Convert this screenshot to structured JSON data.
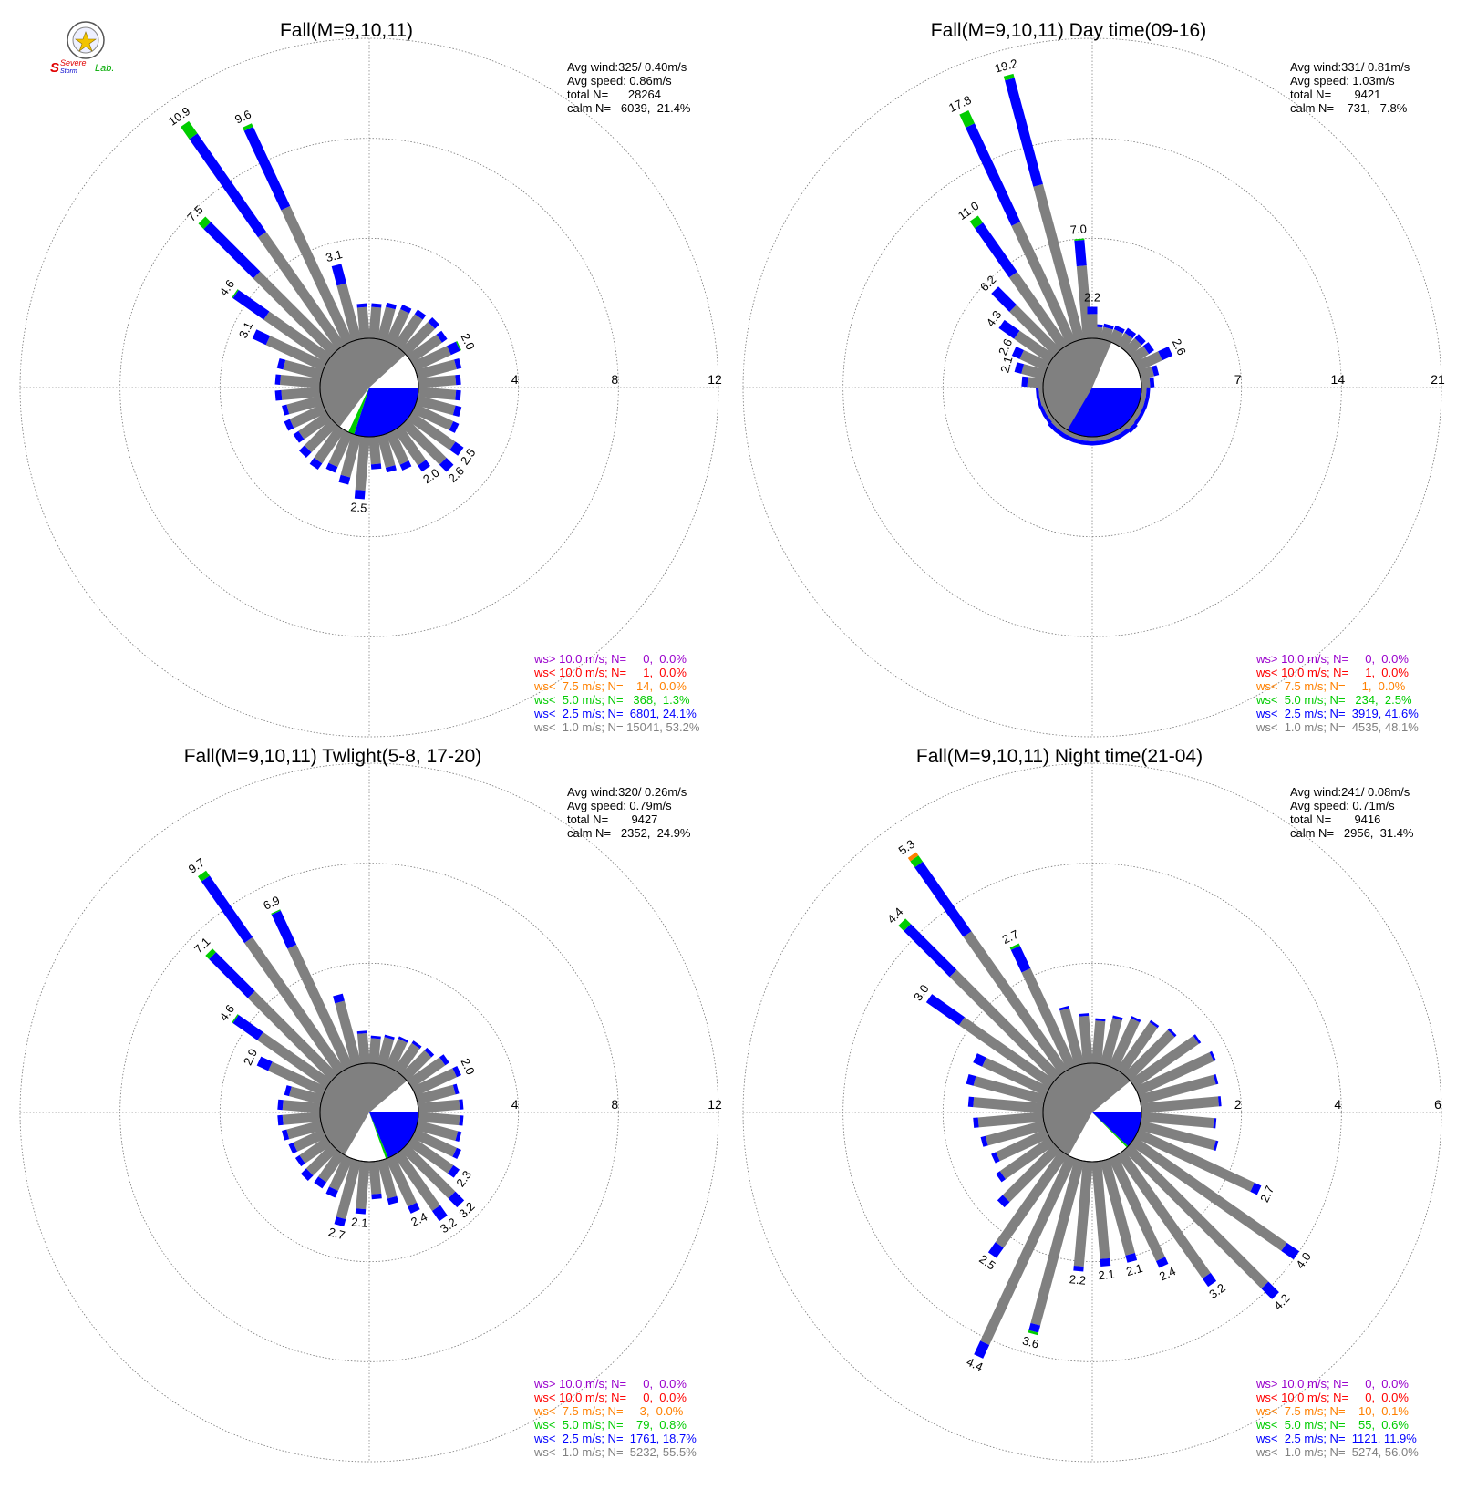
{
  "logo": {
    "line1": "Severe",
    "line2": "Storm",
    "line3": "Lab."
  },
  "category_colors": {
    "calm": "#808080",
    "lt1": "#808080",
    "lt2_5": "#0000ff",
    "lt5": "#00cc00",
    "lt7_5": "#ff8000",
    "lt10": "#ff0000",
    "gt10": "#9900cc"
  },
  "chart_data": [
    {
      "type": "windrose",
      "title": "Fall(M=9,10,11)",
      "info": [
        "Avg wind:325/ 0.40m/s",
        "Avg speed: 0.86m/s",
        "total N=      28264",
        "calm N=   6039,  21.4%"
      ],
      "rings": [
        4,
        8,
        12
      ],
      "calm_pct": 21.4,
      "calm_fractions": {
        "grey": 0.53,
        "blue": 0.3,
        "green": 0.02
      },
      "legend": [
        {
          "text": "ws> 10.0 m/s; N=     0,  0.0%",
          "color": "#9900cc"
        },
        {
          "text": "ws< 10.0 m/s; N=     1,  0.0%",
          "color": "#ff0000"
        },
        {
          "text": "ws<  7.5 m/s; N=    14,  0.0%",
          "color": "#ff8000"
        },
        {
          "text": "ws<  5.0 m/s; N=   368,  1.3%",
          "color": "#00cc00"
        },
        {
          "text": "ws<  2.5 m/s; N=  6801, 24.1%",
          "color": "#0000ff"
        },
        {
          "text": "ws<  1.0 m/s; N= 15041, 53.2%",
          "color": "#808080"
        }
      ],
      "bars": [
        {
          "dir": 5,
          "total": 1.4,
          "blue": 0.15
        },
        {
          "dir": 15,
          "total": 1.5,
          "blue": 0.18
        },
        {
          "dir": 25,
          "total": 1.6,
          "blue": 0.2
        },
        {
          "dir": 35,
          "total": 1.7,
          "blue": 0.22
        },
        {
          "dir": 45,
          "total": 1.8,
          "blue": 0.25
        },
        {
          "dir": 55,
          "total": 1.7,
          "blue": 0.25
        },
        {
          "dir": 65,
          "total": 2.0,
          "blue": 0.4,
          "green": 0.05,
          "label": "2.0"
        },
        {
          "dir": 75,
          "total": 1.8,
          "blue": 0.2
        },
        {
          "dir": 85,
          "total": 1.7,
          "blue": 0.2
        },
        {
          "dir": 95,
          "total": 1.7,
          "blue": 0.2
        },
        {
          "dir": 105,
          "total": 1.8,
          "blue": 0.25
        },
        {
          "dir": 115,
          "total": 1.9,
          "blue": 0.25
        },
        {
          "dir": 125,
          "total": 2.5,
          "blue": 0.4,
          "label": "2.5"
        },
        {
          "dir": 135,
          "total": 2.6,
          "blue": 0.4,
          "label": "2.6"
        },
        {
          "dir": 145,
          "total": 2.0,
          "blue": 0.3,
          "label": "2.0"
        },
        {
          "dir": 155,
          "total": 1.6,
          "blue": 0.25
        },
        {
          "dir": 165,
          "total": 1.5,
          "blue": 0.2
        },
        {
          "dir": 175,
          "total": 1.3,
          "blue": 0.2
        },
        {
          "dir": 185,
          "total": 2.5,
          "blue": 0.35,
          "label": "2.5"
        },
        {
          "dir": 195,
          "total": 2.0,
          "blue": 0.3
        },
        {
          "dir": 205,
          "total": 1.7,
          "blue": 0.25
        },
        {
          "dir": 215,
          "total": 1.9,
          "blue": 0.3
        },
        {
          "dir": 225,
          "total": 1.8,
          "blue": 0.3
        },
        {
          "dir": 235,
          "total": 1.6,
          "blue": 0.25
        },
        {
          "dir": 245,
          "total": 1.7,
          "blue": 0.25
        },
        {
          "dir": 255,
          "total": 1.6,
          "blue": 0.2
        },
        {
          "dir": 265,
          "total": 1.8,
          "blue": 0.25
        },
        {
          "dir": 275,
          "total": 1.8,
          "blue": 0.2
        },
        {
          "dir": 285,
          "total": 1.8,
          "blue": 0.25
        },
        {
          "dir": 295,
          "total": 3.1,
          "blue": 0.6,
          "label": "3.1"
        },
        {
          "dir": 305,
          "total": 4.6,
          "blue": 1.5,
          "green": 0.05,
          "label": "4.6"
        },
        {
          "dir": 315,
          "total": 7.5,
          "blue": 2.8,
          "green": 0.3,
          "label": "7.5"
        },
        {
          "dir": 325,
          "total": 10.9,
          "blue": 4.8,
          "green": 0.6,
          "label": "10.9"
        },
        {
          "dir": 335,
          "total": 9.6,
          "blue": 3.5,
          "green": 0.15,
          "label": "9.6"
        },
        {
          "dir": 345,
          "total": 3.1,
          "blue": 0.8,
          "label": "3.1"
        },
        {
          "dir": 355,
          "total": 1.4,
          "blue": 0.15
        }
      ]
    },
    {
      "type": "windrose",
      "title": "Fall(M=9,10,11) Day time(09-16)",
      "info": [
        "Avg wind:331/ 0.81m/s",
        "Avg speed: 1.03m/s",
        "total N=       9421",
        "calm N=    731,   7.8%"
      ],
      "rings": [
        7,
        14,
        21
      ],
      "calm_pct": 7.8,
      "calm_fractions": {
        "grey": 0.48,
        "blue": 0.42,
        "green": 0.03
      },
      "legend": [
        {
          "text": "ws> 10.0 m/s; N=     0,  0.0%",
          "color": "#9900cc"
        },
        {
          "text": "ws< 10.0 m/s; N=     1,  0.0%",
          "color": "#ff0000"
        },
        {
          "text": "ws<  7.5 m/s; N=     1,  0.0%",
          "color": "#ff8000"
        },
        {
          "text": "ws<  5.0 m/s; N=   234,  2.5%",
          "color": "#00cc00"
        },
        {
          "text": "ws<  2.5 m/s; N=  3919, 41.6%",
          "color": "#0000ff"
        },
        {
          "text": "ws<  1.0 m/s; N=  4535, 48.1%",
          "color": "#808080"
        }
      ],
      "bars": [
        {
          "dir": 5,
          "total": 1.0,
          "blue": 0.2
        },
        {
          "dir": 15,
          "total": 1.1,
          "blue": 0.25
        },
        {
          "dir": 25,
          "total": 1.2,
          "blue": 0.3
        },
        {
          "dir": 35,
          "total": 1.4,
          "blue": 0.4
        },
        {
          "dir": 45,
          "total": 1.5,
          "blue": 0.4
        },
        {
          "dir": 55,
          "total": 1.6,
          "blue": 0.45
        },
        {
          "dir": 65,
          "total": 2.6,
          "blue": 0.8,
          "label": "2.6"
        },
        {
          "dir": 75,
          "total": 1.3,
          "blue": 0.35
        },
        {
          "dir": 85,
          "total": 0.9,
          "blue": 0.3
        },
        {
          "dir": 95,
          "total": 0.6,
          "blue": 0.25
        },
        {
          "dir": 105,
          "total": 0.6,
          "blue": 0.25
        },
        {
          "dir": 115,
          "total": 0.6,
          "blue": 0.25
        },
        {
          "dir": 125,
          "total": 0.6,
          "blue": 0.25
        },
        {
          "dir": 135,
          "total": 0.7,
          "blue": 0.3
        },
        {
          "dir": 145,
          "total": 0.6,
          "blue": 0.3
        },
        {
          "dir": 155,
          "total": 0.6,
          "blue": 0.3
        },
        {
          "dir": 165,
          "total": 0.6,
          "blue": 0.3
        },
        {
          "dir": 175,
          "total": 0.6,
          "blue": 0.3
        },
        {
          "dir": 185,
          "total": 0.6,
          "blue": 0.3
        },
        {
          "dir": 195,
          "total": 0.6,
          "blue": 0.3
        },
        {
          "dir": 205,
          "total": 0.6,
          "blue": 0.3
        },
        {
          "dir": 215,
          "total": 0.6,
          "blue": 0.3
        },
        {
          "dir": 225,
          "total": 0.6,
          "blue": 0.3
        },
        {
          "dir": 235,
          "total": 0.5,
          "blue": 0.25
        },
        {
          "dir": 245,
          "total": 0.5,
          "blue": 0.25
        },
        {
          "dir": 255,
          "total": 0.5,
          "blue": 0.2
        },
        {
          "dir": 265,
          "total": 0.5,
          "blue": 0.2
        },
        {
          "dir": 275,
          "total": 1.5,
          "blue": 0.4
        },
        {
          "dir": 285,
          "total": 2.1,
          "blue": 0.5,
          "label": "2.1"
        },
        {
          "dir": 295,
          "total": 2.6,
          "blue": 0.6,
          "label": "2.6"
        },
        {
          "dir": 305,
          "total": 4.3,
          "blue": 1.3,
          "label": "4.3"
        },
        {
          "dir": 315,
          "total": 6.2,
          "blue": 1.8,
          "label": "6.2"
        },
        {
          "dir": 325,
          "total": 11.0,
          "blue": 4.2,
          "green": 0.6,
          "label": "11.0"
        },
        {
          "dir": 335,
          "total": 17.8,
          "blue": 7.6,
          "green": 1.0,
          "label": "17.8"
        },
        {
          "dir": 345,
          "total": 19.2,
          "blue": 7.7,
          "green": 0.3,
          "label": "19.2"
        },
        {
          "dir": 355,
          "total": 7.0,
          "blue": 1.8,
          "green": 0.1,
          "label": "7.0"
        },
        {
          "dir": 0,
          "total": 2.2,
          "blue": 0.5,
          "label": "2.2"
        }
      ]
    },
    {
      "type": "windrose",
      "title": "Fall(M=9,10,11) Twlight(5-8, 17-20)",
      "info": [
        "Avg wind:320/ 0.26m/s",
        "Avg speed: 0.79m/s",
        "total N=       9427",
        "calm N=   2352,  24.9%"
      ],
      "rings": [
        4,
        8,
        12
      ],
      "calm_pct": 24.9,
      "calm_fractions": {
        "grey": 0.555,
        "blue": 0.187,
        "green": 0.008
      },
      "legend": [
        {
          "text": "ws> 10.0 m/s; N=     0,  0.0%",
          "color": "#9900cc"
        },
        {
          "text": "ws< 10.0 m/s; N=     0,  0.0%",
          "color": "#ff0000"
        },
        {
          "text": "ws<  7.5 m/s; N=     3,  0.0%",
          "color": "#ff8000"
        },
        {
          "text": "ws<  5.0 m/s; N=    79,  0.8%",
          "color": "#00cc00"
        },
        {
          "text": "ws<  2.5 m/s; N=  1761, 18.7%",
          "color": "#0000ff"
        },
        {
          "text": "ws<  1.0 m/s; N=  5232, 55.5%",
          "color": "#808080"
        }
      ],
      "bars": [
        {
          "dir": 5,
          "total": 1.1,
          "blue": 0.1
        },
        {
          "dir": 15,
          "total": 1.2,
          "blue": 0.1
        },
        {
          "dir": 25,
          "total": 1.3,
          "blue": 0.1
        },
        {
          "dir": 35,
          "total": 1.4,
          "blue": 0.12
        },
        {
          "dir": 45,
          "total": 1.5,
          "blue": 0.15
        },
        {
          "dir": 55,
          "total": 1.8,
          "blue": 0.2
        },
        {
          "dir": 65,
          "total": 2.0,
          "blue": 0.2,
          "label": "2.0"
        },
        {
          "dir": 75,
          "total": 1.7,
          "blue": 0.15
        },
        {
          "dir": 85,
          "total": 1.8,
          "blue": 0.15
        },
        {
          "dir": 95,
          "total": 1.8,
          "blue": 0.15
        },
        {
          "dir": 105,
          "total": 1.8,
          "blue": 0.15
        },
        {
          "dir": 115,
          "total": 2.0,
          "blue": 0.2
        },
        {
          "dir": 125,
          "total": 2.3,
          "blue": 0.3,
          "label": "2.3"
        },
        {
          "dir": 135,
          "total": 3.2,
          "blue": 0.5,
          "label": "3.2"
        },
        {
          "dir": 145,
          "total": 3.2,
          "blue": 0.5,
          "label": "3.2"
        },
        {
          "dir": 155,
          "total": 2.4,
          "blue": 0.3,
          "label": "2.4"
        },
        {
          "dir": 165,
          "total": 1.8,
          "blue": 0.25
        },
        {
          "dir": 175,
          "total": 1.5,
          "blue": 0.2
        },
        {
          "dir": 185,
          "total": 2.1,
          "blue": 0.2,
          "label": "2.1"
        },
        {
          "dir": 195,
          "total": 2.7,
          "blue": 0.3,
          "label": "2.7"
        },
        {
          "dir": 205,
          "total": 1.7,
          "blue": 0.3
        },
        {
          "dir": 215,
          "total": 1.6,
          "blue": 0.3
        },
        {
          "dir": 225,
          "total": 1.7,
          "blue": 0.3
        },
        {
          "dir": 235,
          "total": 1.5,
          "blue": 0.2
        },
        {
          "dir": 245,
          "total": 1.5,
          "blue": 0.2
        },
        {
          "dir": 255,
          "total": 1.6,
          "blue": 0.2
        },
        {
          "dir": 265,
          "total": 1.7,
          "blue": 0.2
        },
        {
          "dir": 275,
          "total": 1.7,
          "blue": 0.2
        },
        {
          "dir": 285,
          "total": 1.5,
          "blue": 0.2
        },
        {
          "dir": 295,
          "total": 2.9,
          "blue": 0.5,
          "label": "2.9"
        },
        {
          "dir": 305,
          "total": 4.6,
          "blue": 1.2,
          "green": 0.05,
          "label": "4.6"
        },
        {
          "dir": 315,
          "total": 7.1,
          "blue": 2.2,
          "green": 0.2,
          "label": "7.1"
        },
        {
          "dir": 325,
          "total": 9.7,
          "blue": 3.0,
          "green": 0.25,
          "label": "9.7"
        },
        {
          "dir": 335,
          "total": 6.9,
          "blue": 1.5,
          "green": 0.05,
          "label": "6.9"
        },
        {
          "dir": 345,
          "total": 2.9,
          "blue": 0.3
        },
        {
          "dir": 355,
          "total": 1.3,
          "blue": 0.1
        }
      ]
    },
    {
      "type": "windrose",
      "title": "Fall(M=9,10,11) Night time(21-04)",
      "info": [
        "Avg wind:241/ 0.08m/s",
        "Avg speed: 0.71m/s",
        "total N=       9416",
        "calm N=   2956,  31.4%"
      ],
      "rings": [
        2,
        4,
        6
      ],
      "calm_pct": 31.4,
      "calm_fractions": {
        "grey": 0.56,
        "blue": 0.12,
        "green": 0.006
      },
      "legend": [
        {
          "text": "ws> 10.0 m/s; N=     0,  0.0%",
          "color": "#9900cc"
        },
        {
          "text": "ws< 10.0 m/s; N=     0,  0.0%",
          "color": "#ff0000"
        },
        {
          "text": "ws<  7.5 m/s; N=    10,  0.1%",
          "color": "#ff8000"
        },
        {
          "text": "ws<  5.0 m/s; N=    55,  0.6%",
          "color": "#00cc00"
        },
        {
          "text": "ws<  2.5 m/s; N=  1121, 11.9%",
          "color": "#0000ff"
        },
        {
          "text": "ws<  1.0 m/s; N=  5274, 56.0%",
          "color": "#808080"
        }
      ],
      "bars": [
        {
          "dir": 5,
          "total": 0.9,
          "blue": 0.05
        },
        {
          "dir": 15,
          "total": 1.0,
          "blue": 0.05
        },
        {
          "dir": 25,
          "total": 1.1,
          "blue": 0.05
        },
        {
          "dir": 35,
          "total": 1.2,
          "blue": 0.05
        },
        {
          "dir": 45,
          "total": 1.3,
          "blue": 0.05
        },
        {
          "dir": 55,
          "total": 1.6,
          "blue": 0.05
        },
        {
          "dir": 65,
          "total": 1.7,
          "blue": 0.05
        },
        {
          "dir": 75,
          "total": 1.6,
          "blue": 0.05
        },
        {
          "dir": 85,
          "total": 1.6,
          "blue": 0.05
        },
        {
          "dir": 95,
          "total": 1.5,
          "blue": 0.05
        },
        {
          "dir": 105,
          "total": 1.6,
          "blue": 0.05
        },
        {
          "dir": 115,
          "total": 2.7,
          "blue": 0.15,
          "label": "2.7"
        },
        {
          "dir": 125,
          "total": 4.0,
          "blue": 0.3,
          "label": "4.0"
        },
        {
          "dir": 135,
          "total": 4.2,
          "blue": 0.3,
          "label": "4.2"
        },
        {
          "dir": 145,
          "total": 3.2,
          "blue": 0.2,
          "label": "3.2"
        },
        {
          "dir": 155,
          "total": 2.4,
          "blue": 0.15,
          "label": "2.4"
        },
        {
          "dir": 165,
          "total": 2.1,
          "blue": 0.15,
          "label": "2.1"
        },
        {
          "dir": 175,
          "total": 2.1,
          "blue": 0.15,
          "label": "2.1"
        },
        {
          "dir": 185,
          "total": 2.2,
          "blue": 0.1,
          "label": "2.2"
        },
        {
          "dir": 195,
          "total": 3.6,
          "blue": 0.15,
          "green": 0.05,
          "label": "3.6"
        },
        {
          "dir": 205,
          "total": 4.4,
          "blue": 0.3,
          "label": "4.4"
        },
        {
          "dir": 215,
          "total": 2.5,
          "blue": 0.25,
          "label": "2.5"
        },
        {
          "dir": 225,
          "total": 1.6,
          "blue": 0.15
        },
        {
          "dir": 235,
          "total": 1.3,
          "blue": 0.1
        },
        {
          "dir": 245,
          "total": 1.2,
          "blue": 0.1
        },
        {
          "dir": 255,
          "total": 1.3,
          "blue": 0.1
        },
        {
          "dir": 265,
          "total": 1.4,
          "blue": 0.1
        },
        {
          "dir": 275,
          "total": 1.5,
          "blue": 0.1
        },
        {
          "dir": 285,
          "total": 1.6,
          "blue": 0.15
        },
        {
          "dir": 295,
          "total": 1.6,
          "blue": 0.2
        },
        {
          "dir": 305,
          "total": 3.0,
          "blue": 0.8,
          "label": "3.0"
        },
        {
          "dir": 315,
          "total": 4.4,
          "blue": 1.3,
          "green": 0.15,
          "label": "4.4"
        },
        {
          "dir": 325,
          "total": 5.3,
          "blue": 1.7,
          "green": 0.15,
          "orange": 0.08,
          "label": "5.3"
        },
        {
          "dir": 335,
          "total": 2.7,
          "blue": 0.5,
          "green": 0.05,
          "label": "2.7"
        },
        {
          "dir": 345,
          "total": 1.2,
          "blue": 0.05
        },
        {
          "dir": 355,
          "total": 1.0,
          "blue": 0.05
        }
      ]
    }
  ]
}
